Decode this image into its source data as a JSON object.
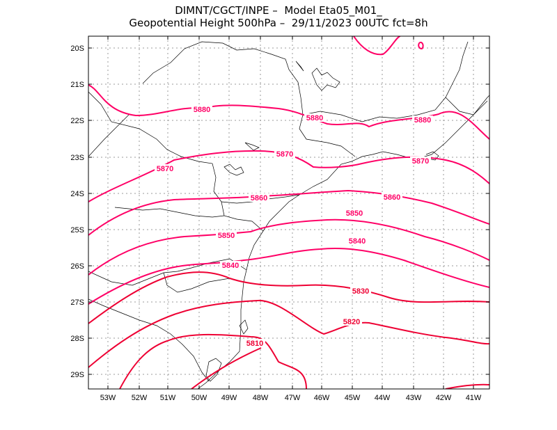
{
  "title": {
    "line1": "DIMNT/CGCT/INPE –  Model Eta05_M01_",
    "line2": "Geopotential Height 500hPa –  29/11/2023 00UTC fct=8h"
  },
  "map": {
    "lat_labels": [
      "20S",
      "21S",
      "22S",
      "23S",
      "24S",
      "25S",
      "26S",
      "27S",
      "28S",
      "29S"
    ],
    "lon_labels": [
      "53W",
      "52W",
      "51W",
      "50W",
      "49W",
      "48W",
      "47W",
      "46W",
      "45W",
      "44W",
      "43W",
      "42W",
      "41W"
    ],
    "contour_color": "#ff0066",
    "contour_color_low": "#ee0033",
    "contour_labels": [
      {
        "key": "c5880a",
        "text": "5880"
      },
      {
        "key": "c5880b",
        "text": "5880"
      },
      {
        "key": "c5880c",
        "text": "5880"
      },
      {
        "key": "c5870a",
        "text": "5870"
      },
      {
        "key": "c5870b",
        "text": "5870"
      },
      {
        "key": "c5870c",
        "text": "5870"
      },
      {
        "key": "c5860a",
        "text": "5860"
      },
      {
        "key": "c5860b",
        "text": "5860"
      },
      {
        "key": "c5850a",
        "text": "5850"
      },
      {
        "key": "c5850b",
        "text": "5850"
      },
      {
        "key": "c5840a",
        "text": "5840"
      },
      {
        "key": "c5840b",
        "text": "5840"
      },
      {
        "key": "c5830",
        "text": "5830"
      },
      {
        "key": "c5820",
        "text": "5820"
      },
      {
        "key": "c5810",
        "text": "5810"
      }
    ]
  }
}
